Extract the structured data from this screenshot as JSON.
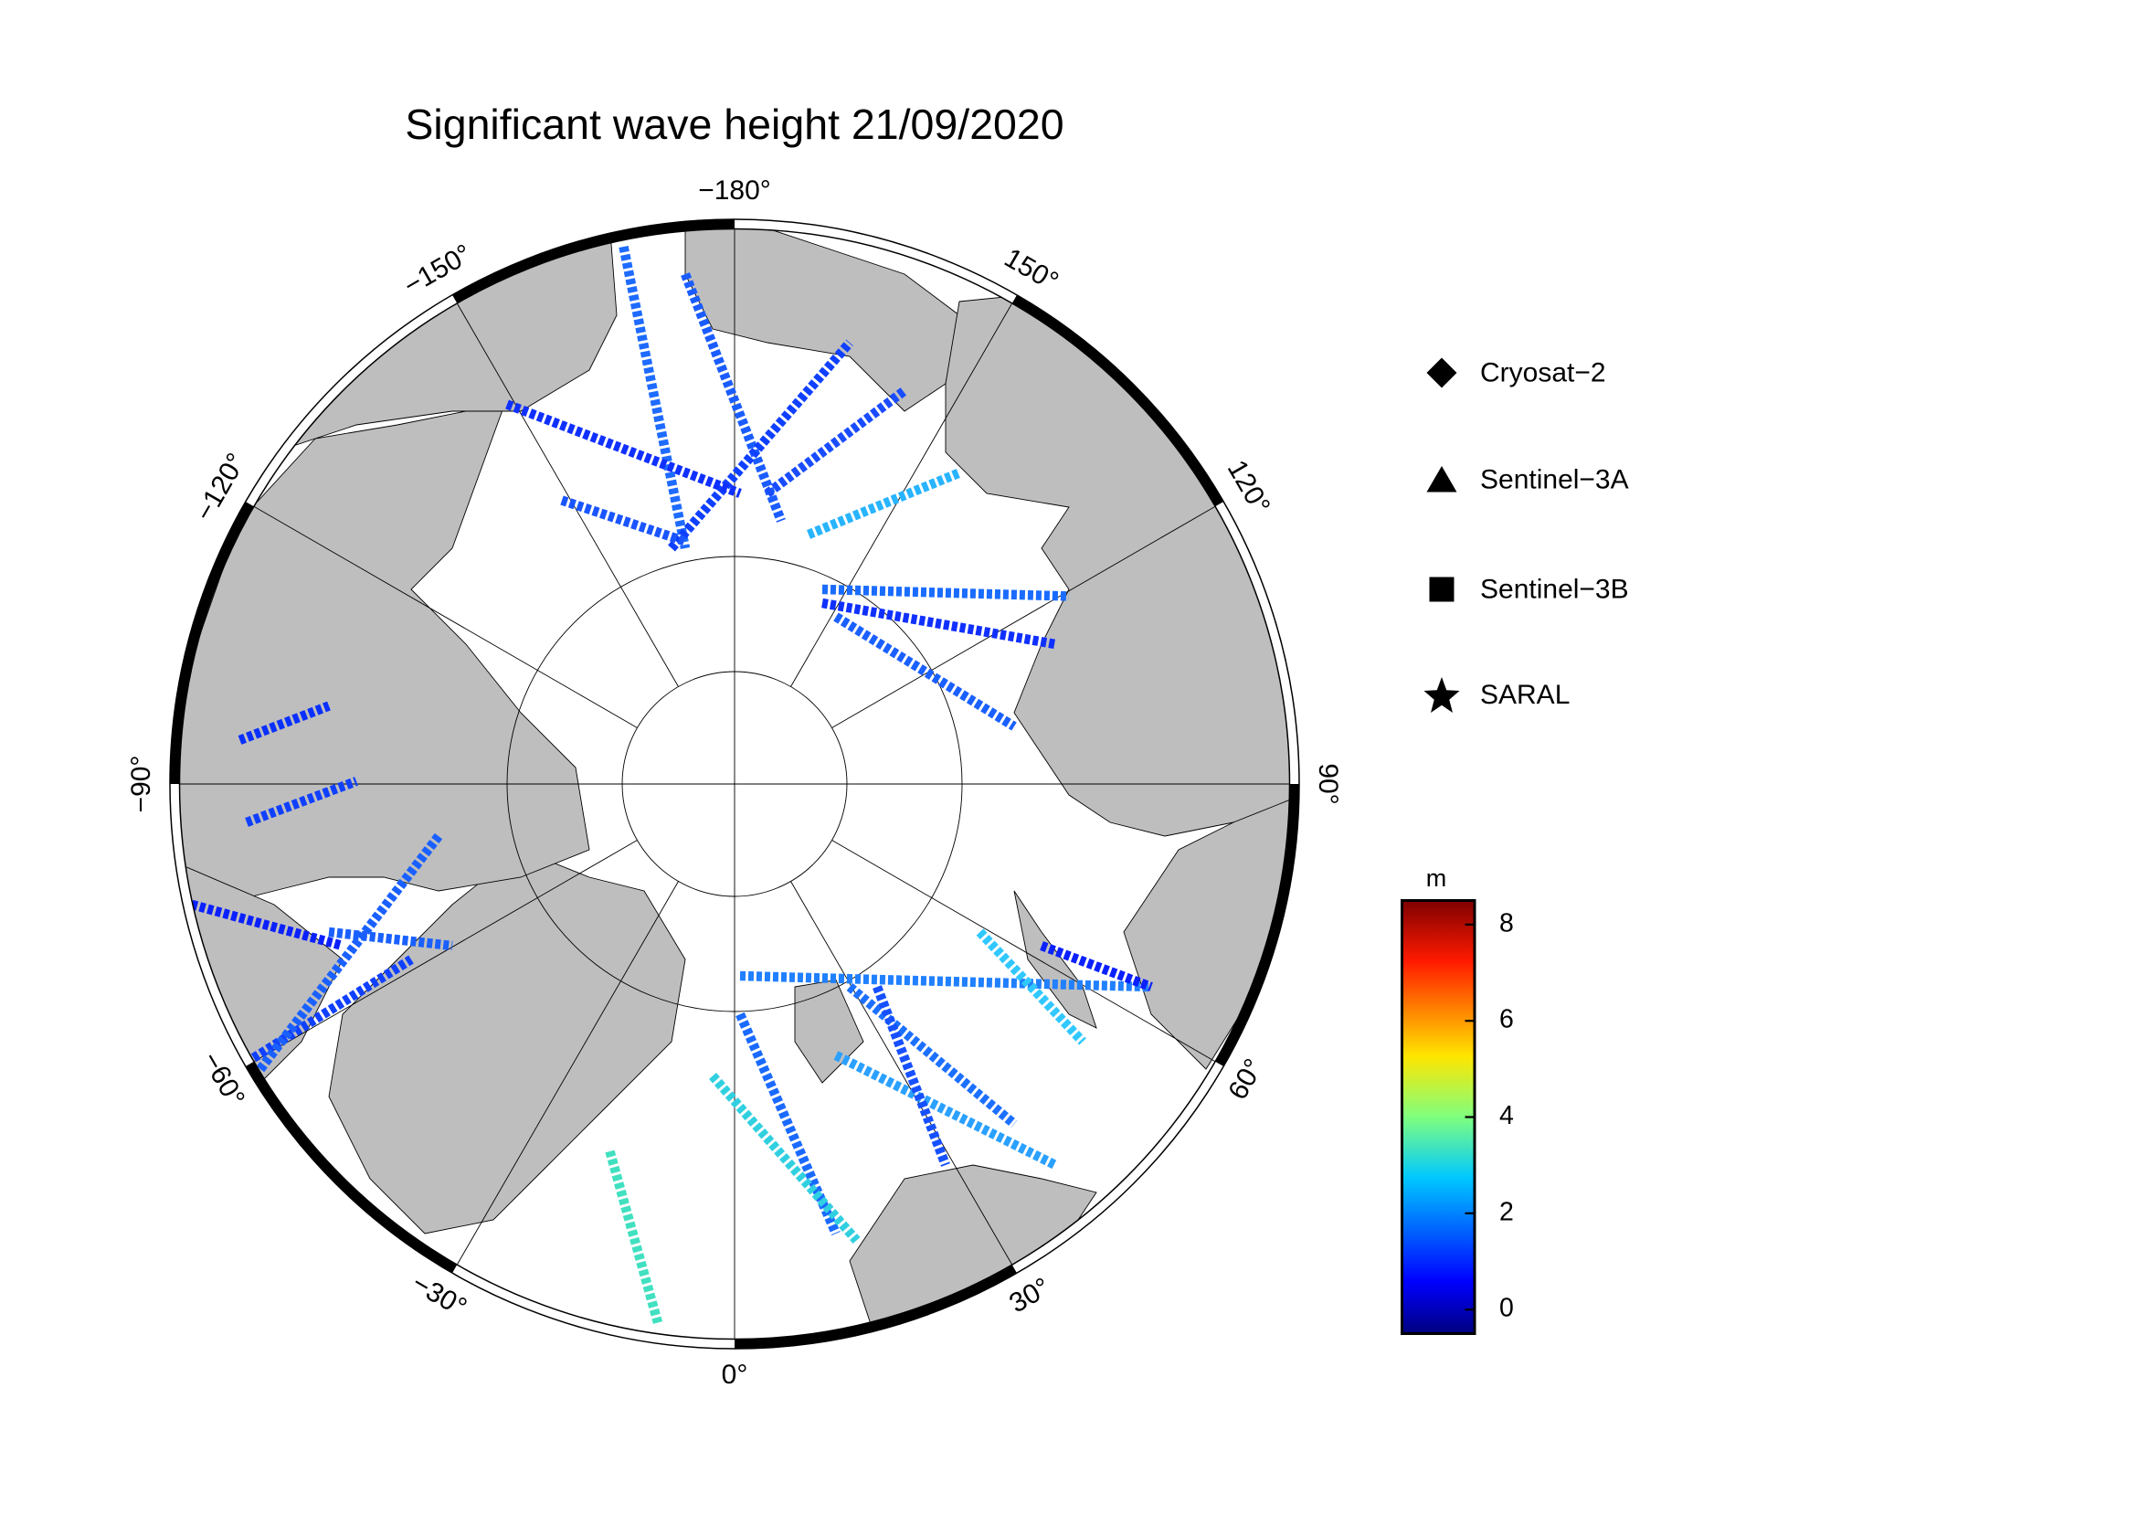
{
  "title": "Significant wave height 21/09/2020",
  "map": {
    "longitude_ticks": [
      {
        "value": -180,
        "label": "−180°"
      },
      {
        "value": 150,
        "label": "150°"
      },
      {
        "value": 120,
        "label": "120°"
      },
      {
        "value": 90,
        "label": "90°"
      },
      {
        "value": 60,
        "label": "60°"
      },
      {
        "value": 30,
        "label": "30°"
      },
      {
        "value": 0,
        "label": "0°"
      },
      {
        "value": -30,
        "label": "−30°"
      },
      {
        "value": -60,
        "label": "−60°"
      },
      {
        "value": -90,
        "label": "−90°"
      },
      {
        "value": -120,
        "label": "−120°"
      },
      {
        "value": -150,
        "label": "−150°"
      }
    ]
  },
  "legend": {
    "entries": [
      "Cryosat−2",
      "Sentinel−3A",
      "Sentinel−3B",
      "SARAL"
    ]
  },
  "colorbar": {
    "label": "m",
    "ylim": [
      -0.5,
      8.5
    ],
    "yticks": [
      0,
      2,
      4,
      6,
      8
    ]
  }
}
